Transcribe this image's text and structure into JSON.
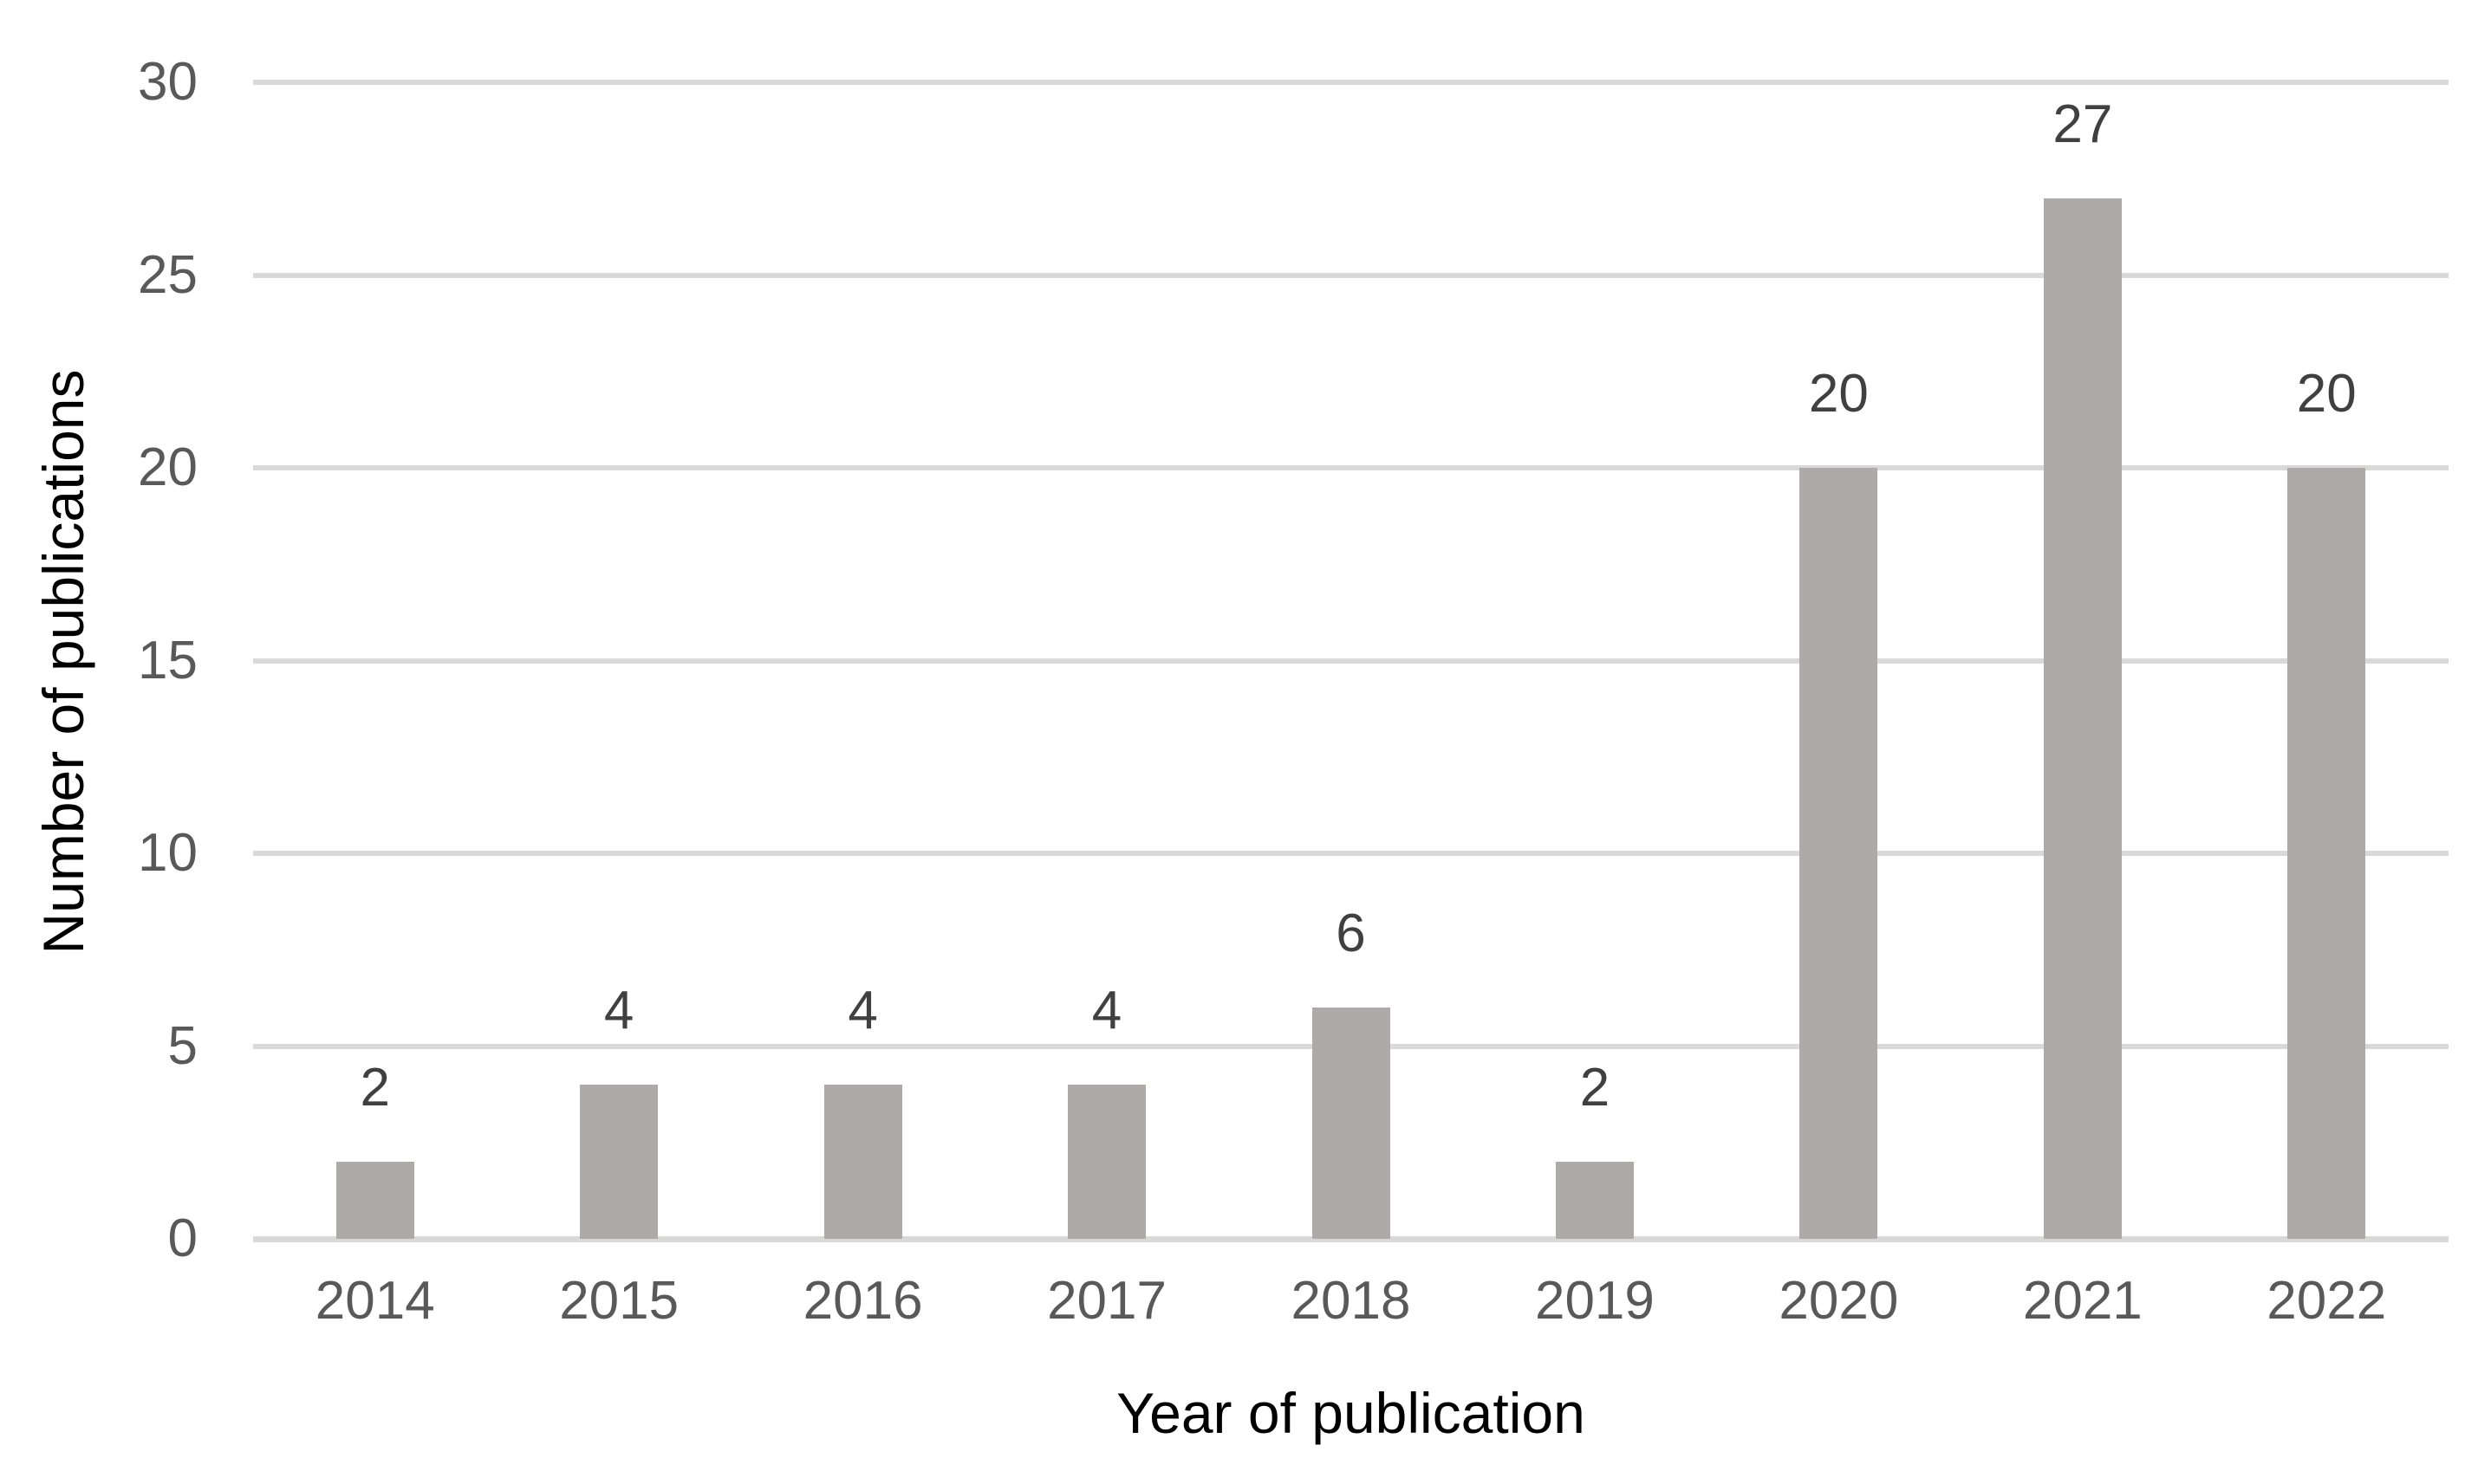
{
  "chart_data": {
    "type": "bar",
    "categories": [
      "2014",
      "2015",
      "2016",
      "2017",
      "2018",
      "2019",
      "2020",
      "2021",
      "2022"
    ],
    "values": [
      2,
      4,
      4,
      4,
      6,
      2,
      20,
      27,
      20
    ],
    "data_labels": [
      "2",
      "4",
      "4",
      "4",
      "6",
      "2",
      "20",
      "27",
      "20"
    ],
    "xlabel": "Year of publication",
    "ylabel": "Number of publications",
    "ylim": [
      0,
      30
    ],
    "yticks": [
      0,
      5,
      10,
      15,
      20,
      25,
      30
    ],
    "grid": "horizontal",
    "legend": "none",
    "colors": {
      "bar_fill": "#aeaaa9",
      "gridline": "#d9d9d9",
      "tick_label": "#595959",
      "data_label": "#404040",
      "axis_title": "#000000",
      "background": "#ffffff"
    }
  }
}
